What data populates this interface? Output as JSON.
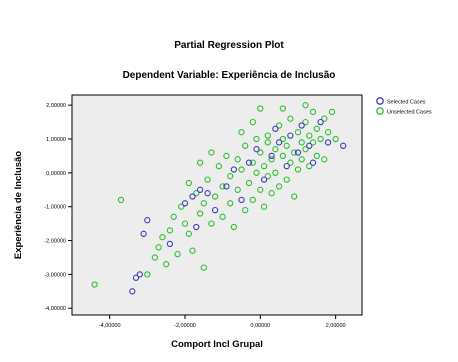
{
  "chart_data": {
    "type": "scatter",
    "title": "Partial Regression Plot",
    "subtitle": "Dependent Variable: Experiência de Inclusão",
    "xlabel": "Comport Incl Grupal",
    "ylabel": "Experiência de Inclusão",
    "xlim": [
      -5,
      2.7
    ],
    "ylim": [
      -4.2,
      2.3
    ],
    "x_ticks": [
      -4,
      -2,
      0,
      2
    ],
    "x_tick_labels": [
      "-4,00000",
      "-2,00000",
      "0,00000",
      "2,00000"
    ],
    "y_ticks": [
      -4,
      -3,
      -2,
      -1,
      0,
      1,
      2
    ],
    "y_tick_labels": [
      "-4,00000",
      "-3,00000",
      "-2,00000",
      "-1,00000",
      "0,00000",
      "1,00000",
      "2,00000"
    ],
    "grid": false,
    "legend_position": "top-right",
    "colors": {
      "selected": "#3b3bbb",
      "unselected": "#2fbf2f",
      "plot_bg": "#ededed"
    },
    "series": [
      {
        "name": "Selected Cases",
        "points": [
          [
            -3.4,
            -3.5
          ],
          [
            -3.3,
            -3.1
          ],
          [
            -3.2,
            -3.0
          ],
          [
            -3.1,
            -1.8
          ],
          [
            -3.0,
            -1.4
          ],
          [
            -2.4,
            -2.1
          ],
          [
            -2.0,
            -0.9
          ],
          [
            -1.8,
            -0.7
          ],
          [
            -1.7,
            -1.6
          ],
          [
            -1.6,
            -0.5
          ],
          [
            -1.4,
            -0.6
          ],
          [
            -1.2,
            -1.1
          ],
          [
            -0.9,
            -0.4
          ],
          [
            -0.7,
            0.1
          ],
          [
            -0.5,
            -0.8
          ],
          [
            -0.3,
            0.3
          ],
          [
            -0.1,
            0.7
          ],
          [
            0.1,
            -0.2
          ],
          [
            0.3,
            0.5
          ],
          [
            0.4,
            1.3
          ],
          [
            0.5,
            0.9
          ],
          [
            0.7,
            0.2
          ],
          [
            0.8,
            1.1
          ],
          [
            1.0,
            0.6
          ],
          [
            1.1,
            1.4
          ],
          [
            1.3,
            0.8
          ],
          [
            1.4,
            0.3
          ],
          [
            1.6,
            1.5
          ],
          [
            1.8,
            0.9
          ],
          [
            2.2,
            0.8
          ]
        ]
      },
      {
        "name": "Unselected Cases",
        "points": [
          [
            -4.4,
            -3.3
          ],
          [
            -3.7,
            -0.8
          ],
          [
            -3.0,
            -3.0
          ],
          [
            -2.8,
            -2.5
          ],
          [
            -2.6,
            -1.9
          ],
          [
            -2.5,
            -2.7
          ],
          [
            -2.3,
            -1.3
          ],
          [
            -2.2,
            -2.4
          ],
          [
            -2.1,
            -1.0
          ],
          [
            -2.0,
            -1.5
          ],
          [
            -1.9,
            -0.3
          ],
          [
            -1.8,
            -2.3
          ],
          [
            -1.7,
            -0.6
          ],
          [
            -1.6,
            -1.2
          ],
          [
            -1.5,
            -0.9
          ],
          [
            -1.5,
            -2.8
          ],
          [
            -1.4,
            -0.2
          ],
          [
            -1.3,
            -1.5
          ],
          [
            -1.2,
            -0.7
          ],
          [
            -1.1,
            0.2
          ],
          [
            -1.0,
            -1.3
          ],
          [
            -1.0,
            -0.4
          ],
          [
            -0.9,
            0.5
          ],
          [
            -0.8,
            -0.9
          ],
          [
            -0.8,
            -0.1
          ],
          [
            -0.7,
            -1.6
          ],
          [
            -0.6,
            0.4
          ],
          [
            -0.6,
            -0.5
          ],
          [
            -0.5,
            0.1
          ],
          [
            -0.4,
            -1.1
          ],
          [
            -0.4,
            0.8
          ],
          [
            -0.3,
            -0.3
          ],
          [
            -0.2,
            0.3
          ],
          [
            -0.2,
            -0.8
          ],
          [
            -0.1,
            0.0
          ],
          [
            -0.1,
            1.0
          ],
          [
            0.0,
            -0.5
          ],
          [
            0.0,
            0.6
          ],
          [
            0.1,
            0.2
          ],
          [
            0.1,
            -1.0
          ],
          [
            0.2,
            1.1
          ],
          [
            0.2,
            -0.1
          ],
          [
            0.3,
            0.4
          ],
          [
            0.3,
            -0.6
          ],
          [
            0.4,
            0.7
          ],
          [
            0.4,
            0.0
          ],
          [
            0.5,
            1.4
          ],
          [
            0.5,
            -0.4
          ],
          [
            0.6,
            0.5
          ],
          [
            0.6,
            1.0
          ],
          [
            0.7,
            0.8
          ],
          [
            0.7,
            -0.2
          ],
          [
            0.8,
            0.3
          ],
          [
            0.8,
            1.6
          ],
          [
            0.9,
            0.6
          ],
          [
            0.9,
            -0.7
          ],
          [
            1.0,
            1.2
          ],
          [
            1.0,
            0.1
          ],
          [
            1.1,
            0.9
          ],
          [
            1.1,
            0.4
          ],
          [
            1.2,
            1.5
          ],
          [
            1.2,
            0.7
          ],
          [
            1.3,
            0.2
          ],
          [
            1.3,
            1.1
          ],
          [
            1.4,
            0.9
          ],
          [
            1.4,
            1.8
          ],
          [
            1.5,
            0.5
          ],
          [
            1.5,
            1.3
          ],
          [
            1.6,
            1.0
          ],
          [
            1.7,
            0.4
          ],
          [
            1.7,
            1.6
          ],
          [
            1.8,
            1.2
          ],
          [
            1.9,
            1.8
          ],
          [
            2.0,
            1.0
          ],
          [
            -1.6,
            0.3
          ],
          [
            -2.4,
            -1.7
          ],
          [
            -0.2,
            1.5
          ],
          [
            0.0,
            1.9
          ],
          [
            -1.3,
            0.6
          ],
          [
            0.6,
            1.9
          ],
          [
            1.2,
            2.0
          ],
          [
            -0.5,
            1.2
          ],
          [
            -2.7,
            -2.2
          ],
          [
            -1.9,
            -1.8
          ],
          [
            0.2,
            0.9
          ]
        ]
      }
    ]
  }
}
